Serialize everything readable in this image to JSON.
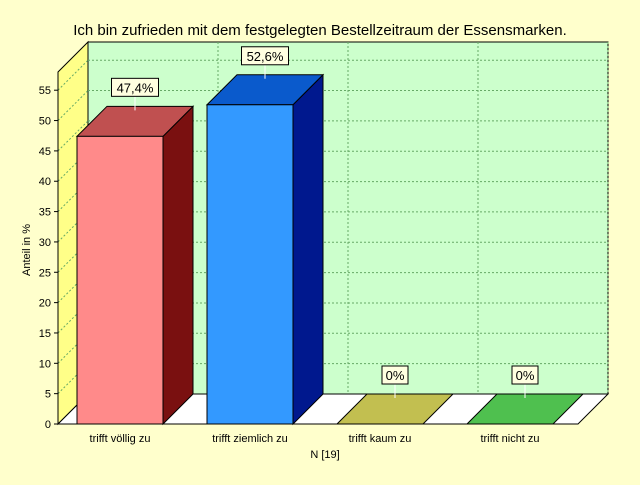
{
  "chart_data": {
    "type": "bar",
    "title": "Ich bin zufrieden mit dem festgelegten Bestellzeitraum der Essensmarken.",
    "xlabel": "N [19]",
    "ylabel": "Anteil in %",
    "ylim": [
      0,
      58
    ],
    "yticks": [
      0,
      5,
      10,
      15,
      20,
      25,
      30,
      35,
      40,
      45,
      50,
      55
    ],
    "categories": [
      "trifft völlig zu",
      "trifft ziemlich zu",
      "trifft kaum zu",
      "trifft nicht zu"
    ],
    "values": [
      47.4,
      52.6,
      0,
      0
    ],
    "data_labels": [
      "47,4%",
      "52,6%",
      "0%",
      "0%"
    ],
    "colors": {
      "front": [
        "#ff8a8a",
        "#3399ff",
        "#c2bf50",
        "#4fc04f"
      ],
      "top": [
        "#c05050",
        "#0a5acc",
        "#c2bf50",
        "#4fc04f"
      ],
      "side": [
        "#7a1010",
        "#00188e",
        "#8a8a30",
        "#2a8a2a"
      ],
      "plot_background": "#ccffcc",
      "left_wall": "#ffff88",
      "page_background": "#ffffcc",
      "grid": "#66aa66"
    },
    "grid": true,
    "legend": "none"
  }
}
